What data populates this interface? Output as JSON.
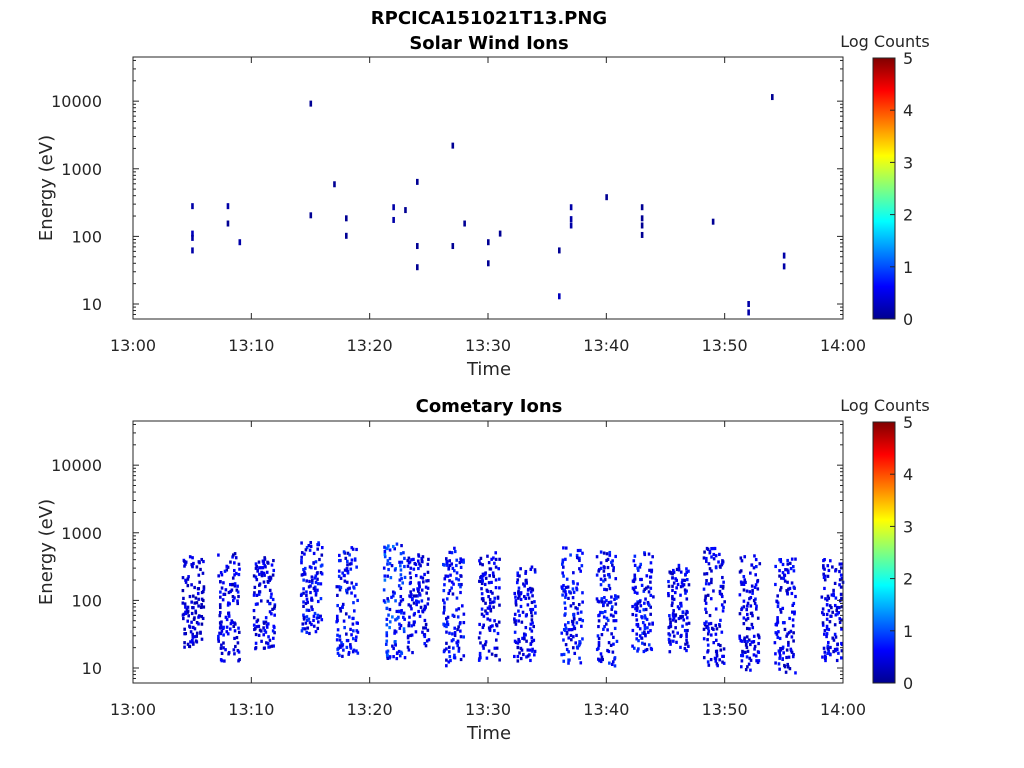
{
  "figure": {
    "title": "RPCICA151021T13.PNG"
  },
  "chart_data": [
    {
      "type": "heatmap",
      "title": "Solar Wind Ions",
      "xlabel": "Time",
      "ylabel": "Energy (eV)",
      "y_scale": "log",
      "xlim": [
        "13:00",
        "14:00"
      ],
      "ylim": [
        6,
        45000
      ],
      "x_ticks": [
        "13:00",
        "13:10",
        "13:20",
        "13:30",
        "13:40",
        "13:50",
        "14:00"
      ],
      "y_ticks": [
        "10",
        "100",
        "1000",
        "10000"
      ],
      "colorbar": {
        "label": "Log Counts",
        "min": 0,
        "max": 5,
        "ticks": [
          "0",
          "1",
          "2",
          "3",
          "4",
          "5"
        ],
        "colormap": "jet"
      },
      "pixels_log_counts": [
        {
          "time": "13:05",
          "energy": 280,
          "log_counts": 0.2
        },
        {
          "time": "13:05",
          "energy": 110,
          "log_counts": 0.3
        },
        {
          "time": "13:05",
          "energy": 95,
          "log_counts": 0.2
        },
        {
          "time": "13:05",
          "energy": 62,
          "log_counts": 0.2
        },
        {
          "time": "13:08",
          "energy": 280,
          "log_counts": 0.2
        },
        {
          "time": "13:08",
          "energy": 155,
          "log_counts": 0.1
        },
        {
          "time": "13:09",
          "energy": 82,
          "log_counts": 0.2
        },
        {
          "time": "13:15",
          "energy": 9200,
          "log_counts": 0.1
        },
        {
          "time": "13:15",
          "energy": 205,
          "log_counts": 0.1
        },
        {
          "time": "13:17",
          "energy": 590,
          "log_counts": 0.1
        },
        {
          "time": "13:18",
          "energy": 185,
          "log_counts": 0.1
        },
        {
          "time": "13:18",
          "energy": 102,
          "log_counts": 0.1
        },
        {
          "time": "13:22",
          "energy": 270,
          "log_counts": 0.2
        },
        {
          "time": "13:22",
          "energy": 175,
          "log_counts": 0.2
        },
        {
          "time": "13:23",
          "energy": 245,
          "log_counts": 0.1
        },
        {
          "time": "13:24",
          "energy": 640,
          "log_counts": 0.1
        },
        {
          "time": "13:24",
          "energy": 72,
          "log_counts": 0.1
        },
        {
          "time": "13:24",
          "energy": 35,
          "log_counts": 0.1
        },
        {
          "time": "13:27",
          "energy": 2200,
          "log_counts": 0.1
        },
        {
          "time": "13:27",
          "energy": 72,
          "log_counts": 0.1
        },
        {
          "time": "13:28",
          "energy": 155,
          "log_counts": 0.1
        },
        {
          "time": "13:30",
          "energy": 82,
          "log_counts": 0.1
        },
        {
          "time": "13:30",
          "energy": 40,
          "log_counts": 0.1
        },
        {
          "time": "13:31",
          "energy": 110,
          "log_counts": 0.1
        },
        {
          "time": "13:36",
          "energy": 62,
          "log_counts": 0.1
        },
        {
          "time": "13:36",
          "energy": 13,
          "log_counts": 0.3
        },
        {
          "time": "13:37",
          "energy": 270,
          "log_counts": 0.2
        },
        {
          "time": "13:37",
          "energy": 180,
          "log_counts": 0.2
        },
        {
          "time": "13:37",
          "energy": 145,
          "log_counts": 0.2
        },
        {
          "time": "13:40",
          "energy": 380,
          "log_counts": 0.1
        },
        {
          "time": "13:43",
          "energy": 270,
          "log_counts": 0.1
        },
        {
          "time": "13:43",
          "energy": 185,
          "log_counts": 0.1
        },
        {
          "time": "13:43",
          "energy": 145,
          "log_counts": 0.1
        },
        {
          "time": "13:43",
          "energy": 105,
          "log_counts": 0.1
        },
        {
          "time": "13:49",
          "energy": 165,
          "log_counts": 0.1
        },
        {
          "time": "13:52",
          "energy": 10,
          "log_counts": 0.2
        },
        {
          "time": "13:52",
          "energy": 7.5,
          "log_counts": 0.2
        },
        {
          "time": "13:54",
          "energy": 11500,
          "log_counts": 0.1
        },
        {
          "time": "13:55",
          "energy": 52,
          "log_counts": 0.2
        },
        {
          "time": "13:55",
          "energy": 36,
          "log_counts": 0.2
        }
      ]
    },
    {
      "type": "heatmap",
      "title": "Cometary Ions",
      "xlabel": "Time",
      "ylabel": "Energy (eV)",
      "y_scale": "log",
      "xlim": [
        "13:00",
        "14:00"
      ],
      "ylim": [
        6,
        45000
      ],
      "x_ticks": [
        "13:00",
        "13:10",
        "13:20",
        "13:30",
        "13:40",
        "13:50",
        "14:00"
      ],
      "y_ticks": [
        "10",
        "100",
        "1000",
        "10000"
      ],
      "colorbar": {
        "label": "Log Counts",
        "min": 0,
        "max": 5,
        "ticks": [
          "0",
          "1",
          "2",
          "3",
          "4",
          "5"
        ],
        "colormap": "jet"
      },
      "bursts": [
        {
          "center": "13:05",
          "e_min": 18,
          "e_max": 450,
          "intensity": 0.4
        },
        {
          "center": "13:08",
          "e_min": 12,
          "e_max": 480,
          "intensity": 0.5
        },
        {
          "center": "13:11",
          "e_min": 18,
          "e_max": 420,
          "intensity": 0.5
        },
        {
          "center": "13:15",
          "e_min": 30,
          "e_max": 700,
          "intensity": 0.6
        },
        {
          "center": "13:18",
          "e_min": 14,
          "e_max": 600,
          "intensity": 0.6
        },
        {
          "center": "13:22",
          "e_min": 13,
          "e_max": 650,
          "intensity": 0.8
        },
        {
          "center": "13:24",
          "e_min": 15,
          "e_max": 450,
          "intensity": 0.5
        },
        {
          "center": "13:27",
          "e_min": 10,
          "e_max": 560,
          "intensity": 0.6
        },
        {
          "center": "13:30",
          "e_min": 12,
          "e_max": 480,
          "intensity": 0.5
        },
        {
          "center": "13:33",
          "e_min": 12,
          "e_max": 300,
          "intensity": 0.5
        },
        {
          "center": "13:37",
          "e_min": 11,
          "e_max": 580,
          "intensity": 0.6
        },
        {
          "center": "13:40",
          "e_min": 10,
          "e_max": 500,
          "intensity": 0.6
        },
        {
          "center": "13:43",
          "e_min": 16,
          "e_max": 480,
          "intensity": 0.6
        },
        {
          "center": "13:46",
          "e_min": 16,
          "e_max": 320,
          "intensity": 0.5
        },
        {
          "center": "13:49",
          "e_min": 10,
          "e_max": 560,
          "intensity": 0.5
        },
        {
          "center": "13:52",
          "e_min": 8,
          "e_max": 450,
          "intensity": 0.5
        },
        {
          "center": "13:55",
          "e_min": 8,
          "e_max": 400,
          "intensity": 0.5
        },
        {
          "center": "13:59",
          "e_min": 12,
          "e_max": 380,
          "intensity": 0.5
        }
      ]
    }
  ]
}
